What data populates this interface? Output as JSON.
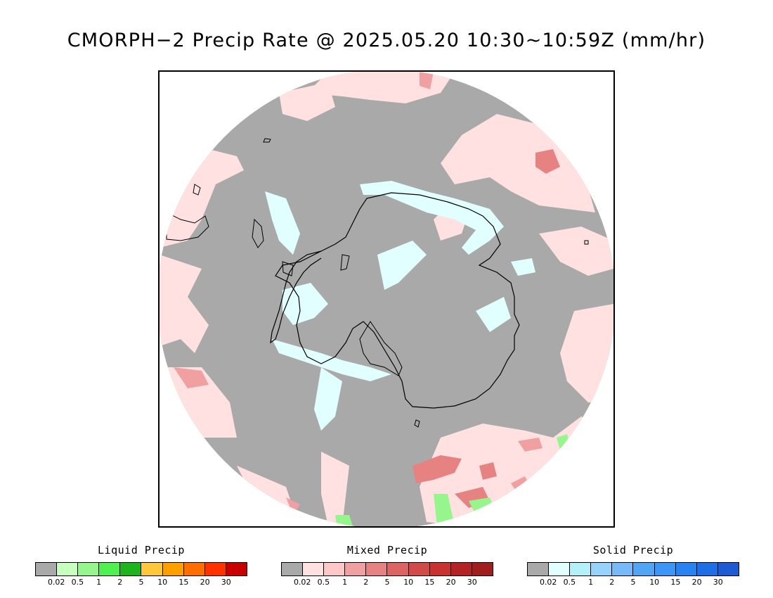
{
  "title": "CMORPH−2 Precip Rate @ 2025.05.20 10:30~10:59Z (mm/hr)",
  "map": {
    "projection": "south-polar-stereographic",
    "background_color": "#a9a9a9",
    "coastline_color": "#000000",
    "precip_regions": [
      {
        "type": "mixed",
        "intensity": "light",
        "location": "northern ocean"
      },
      {
        "type": "mixed",
        "intensity": "moderate",
        "location": "northeast storm"
      },
      {
        "type": "mixed",
        "intensity": "moderate",
        "location": "southeast ocean"
      },
      {
        "type": "solid",
        "intensity": "light",
        "location": "antarctic coast"
      },
      {
        "type": "liquid",
        "intensity": "light",
        "location": "southern edge"
      }
    ]
  },
  "legends": [
    {
      "id": "liquid",
      "title": "Liquid Precip",
      "colors": [
        "#a9a9a9",
        "#c8ffc0",
        "#96f58c",
        "#50f050",
        "#1eb41e",
        "#ffc83c",
        "#ffa000",
        "#ff6e00",
        "#ff3200",
        "#c80000"
      ],
      "ticks": [
        "0.02",
        "0.5",
        "1",
        "2",
        "5",
        "10",
        "15",
        "20",
        "30"
      ]
    },
    {
      "id": "mixed",
      "title": "Mixed Precip",
      "colors": [
        "#a9a9a9",
        "#ffe1e1",
        "#ffc8c8",
        "#f0a0a0",
        "#e68282",
        "#dc6464",
        "#d24b4b",
        "#c83232",
        "#b42323",
        "#a01e1e"
      ],
      "ticks": [
        "0.02",
        "0.5",
        "1",
        "2",
        "5",
        "10",
        "15",
        "20",
        "30"
      ]
    },
    {
      "id": "solid",
      "title": "Solid Precip",
      "colors": [
        "#a9a9a9",
        "#e1ffff",
        "#b4f0fa",
        "#96d2fa",
        "#78b9fa",
        "#50a5f5",
        "#3c96f5",
        "#2882f0",
        "#1e6ee6",
        "#1e5ad2"
      ],
      "ticks": [
        "0.02",
        "0.5",
        "1",
        "2",
        "5",
        "10",
        "15",
        "20",
        "30"
      ]
    }
  ]
}
